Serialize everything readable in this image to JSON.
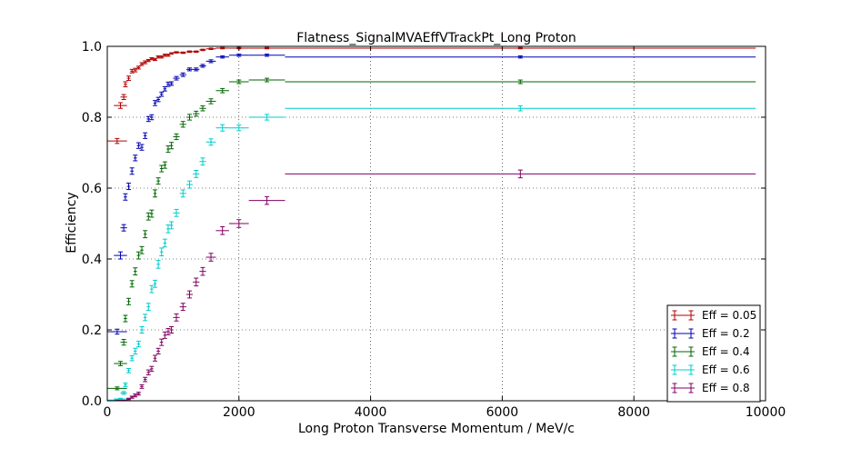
{
  "chart_data": {
    "type": "scatter",
    "title": "Flatness_SignalMVAEffVTrackPt_Long Proton",
    "xlabel": "Long Proton Transverse Momentum / MeV/c",
    "ylabel": "Efficiency",
    "xlim": [
      0,
      10000
    ],
    "ylim": [
      0,
      1.0
    ],
    "xticks": [
      "0",
      "2000",
      "4000",
      "6000",
      "8000",
      "10000"
    ],
    "yticks": [
      "0.0",
      "0.2",
      "0.4",
      "0.6",
      "0.8",
      "1.0"
    ],
    "grid": true,
    "legend_position": "lower-right",
    "x_bins": [
      [
        0,
        300
      ],
      [
        100,
        300
      ],
      [
        200,
        300
      ],
      [
        250,
        300
      ],
      [
        300,
        350
      ],
      [
        350,
        400
      ],
      [
        400,
        450
      ],
      [
        450,
        500
      ],
      [
        500,
        550
      ],
      [
        550,
        600
      ],
      [
        600,
        650
      ],
      [
        650,
        700
      ],
      [
        700,
        750
      ],
      [
        750,
        800
      ],
      [
        800,
        850
      ],
      [
        850,
        900
      ],
      [
        900,
        950
      ],
      [
        950,
        1000
      ],
      [
        1000,
        1100
      ],
      [
        1100,
        1200
      ],
      [
        1200,
        1300
      ],
      [
        1300,
        1400
      ],
      [
        1400,
        1500
      ],
      [
        1500,
        1650
      ],
      [
        1650,
        1850
      ],
      [
        1850,
        2150
      ],
      [
        2150,
        2700
      ],
      [
        2700,
        9850
      ]
    ],
    "series": [
      {
        "name": "Eff = 0.05",
        "color": "#b00000",
        "y": [
          0.733,
          0.833,
          0.857,
          0.893,
          0.91,
          0.93,
          0.933,
          0.94,
          0.95,
          0.955,
          0.96,
          0.965,
          0.963,
          0.97,
          0.97,
          0.975,
          0.975,
          0.98,
          0.983,
          0.982,
          0.985,
          0.985,
          0.99,
          0.993,
          0.995,
          0.995,
          0.995,
          0.995
        ],
        "err": [
          0.007,
          0.008,
          0.007,
          0.007,
          0.006,
          0.005,
          0.005,
          0.004,
          0.004,
          0.004,
          0.003,
          0.003,
          0.003,
          0.003,
          0.003,
          0.003,
          0.003,
          0.002,
          0.002,
          0.002,
          0.002,
          0.002,
          0.002,
          0.002,
          0.002,
          0.002,
          0.002,
          0.002
        ]
      },
      {
        "name": "Eff = 0.2",
        "color": "#0000b0",
        "y": [
          0.195,
          0.41,
          0.488,
          0.575,
          0.605,
          0.648,
          0.685,
          0.72,
          0.715,
          0.748,
          0.795,
          0.8,
          0.84,
          0.85,
          0.865,
          0.88,
          0.893,
          0.895,
          0.91,
          0.92,
          0.935,
          0.935,
          0.945,
          0.958,
          0.97,
          0.975,
          0.975,
          0.97
        ],
        "err": [
          0.007,
          0.01,
          0.009,
          0.009,
          0.009,
          0.009,
          0.008,
          0.008,
          0.008,
          0.008,
          0.007,
          0.007,
          0.007,
          0.006,
          0.006,
          0.006,
          0.006,
          0.005,
          0.005,
          0.005,
          0.004,
          0.004,
          0.004,
          0.004,
          0.003,
          0.003,
          0.003,
          0.003
        ]
      },
      {
        "name": "Eff = 0.4",
        "color": "#006400",
        "y": [
          0.035,
          0.105,
          0.165,
          0.232,
          0.28,
          0.33,
          0.365,
          0.41,
          0.425,
          0.47,
          0.52,
          0.528,
          0.585,
          0.62,
          0.655,
          0.665,
          0.71,
          0.72,
          0.745,
          0.78,
          0.8,
          0.81,
          0.825,
          0.845,
          0.875,
          0.9,
          0.905,
          0.9
        ],
        "err": [
          0.004,
          0.006,
          0.008,
          0.009,
          0.009,
          0.009,
          0.01,
          0.01,
          0.01,
          0.01,
          0.01,
          0.01,
          0.01,
          0.009,
          0.009,
          0.009,
          0.009,
          0.009,
          0.008,
          0.008,
          0.008,
          0.007,
          0.007,
          0.007,
          0.006,
          0.005,
          0.005,
          0.005
        ]
      },
      {
        "name": "Eff = 0.6",
        "color": "#00cccc",
        "y": [
          0.002,
          0.005,
          0.022,
          0.045,
          0.085,
          0.12,
          0.14,
          0.16,
          0.2,
          0.235,
          0.265,
          0.315,
          0.33,
          0.385,
          0.42,
          0.445,
          0.485,
          0.495,
          0.53,
          0.585,
          0.61,
          0.64,
          0.675,
          0.73,
          0.77,
          0.77,
          0.8,
          0.825
        ],
        "err": [
          0.002,
          0.002,
          0.004,
          0.005,
          0.006,
          0.007,
          0.008,
          0.008,
          0.009,
          0.009,
          0.01,
          0.01,
          0.01,
          0.011,
          0.011,
          0.011,
          0.011,
          0.01,
          0.01,
          0.01,
          0.01,
          0.01,
          0.01,
          0.009,
          0.009,
          0.008,
          0.008,
          0.007
        ]
      },
      {
        "name": "Eff = 0.8",
        "color": "#800060",
        "y": [
          0.0,
          0.0,
          0.0,
          0.0,
          0.005,
          0.01,
          0.015,
          0.02,
          0.04,
          0.06,
          0.08,
          0.09,
          0.12,
          0.14,
          0.165,
          0.185,
          0.195,
          0.2,
          0.235,
          0.265,
          0.3,
          0.335,
          0.365,
          0.405,
          0.48,
          0.5,
          0.565,
          0.64
        ],
        "err": [
          0.001,
          0.001,
          0.001,
          0.001,
          0.002,
          0.003,
          0.004,
          0.004,
          0.005,
          0.006,
          0.007,
          0.007,
          0.008,
          0.008,
          0.009,
          0.009,
          0.009,
          0.009,
          0.01,
          0.01,
          0.01,
          0.011,
          0.011,
          0.011,
          0.011,
          0.011,
          0.011,
          0.011
        ]
      }
    ]
  }
}
